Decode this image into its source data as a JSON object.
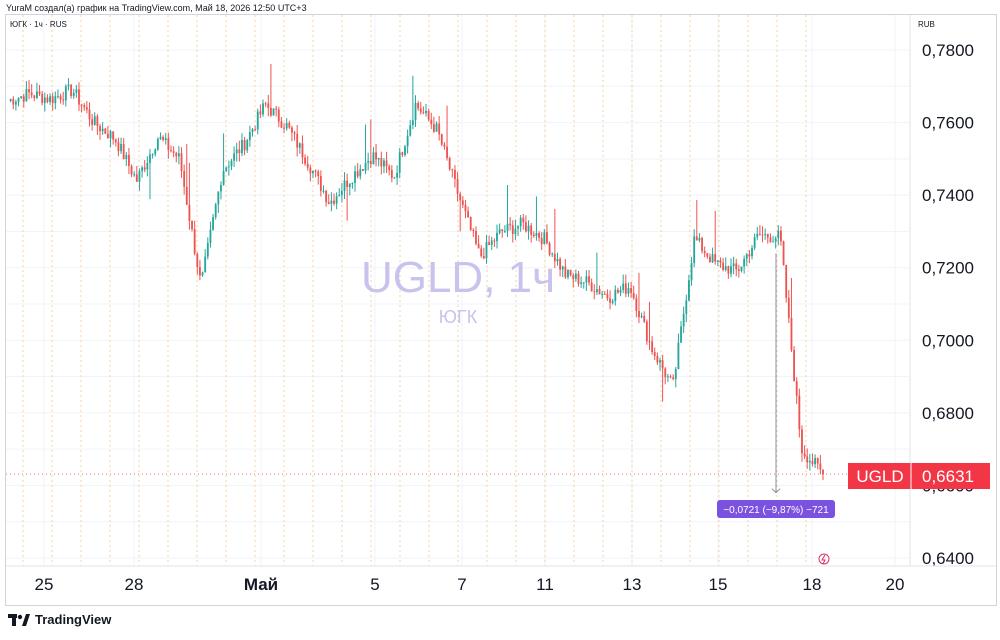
{
  "header": {
    "attribution": "YuraM создал(а) график на TradingView.com, Май 18, 2026 12:50 UTC+3"
  },
  "legend": {
    "symbol_line": "ЮГК · 1ч · RUS"
  },
  "axis": {
    "currency": "RUB"
  },
  "watermark": {
    "title": "UGLD, 1ч",
    "subtitle": "ЮГК"
  },
  "price_tag": {
    "ticker": "UGLD",
    "value": "0,6631",
    "color": "#f23645"
  },
  "measure": {
    "label": "−0,0721 (−9,87%) −721",
    "color": "#7b52e0"
  },
  "footer": {
    "brand": "TradingView"
  },
  "colors": {
    "up": "#26a69a",
    "down": "#ef5350",
    "grid": "#f0f3fa",
    "session_line": "#f5c98a"
  },
  "chart_data": {
    "type": "candlestick",
    "title": "UGLD, 1ч",
    "symbol": "UGLD",
    "exchange": "RUS",
    "interval": "1ч",
    "currency": "RUB",
    "ylim": [
      0.64,
      0.782
    ],
    "y_ticks": [
      "0,7800",
      "0,7600",
      "0,7400",
      "0,7200",
      "0,7000",
      "0,6800",
      "0,6600",
      "0,6400"
    ],
    "x_ticks": [
      "25",
      "28",
      "Май",
      "5",
      "7",
      "11",
      "13",
      "15",
      "18",
      "20"
    ],
    "last_price": 0.6631,
    "price_path": [
      {
        "t": "25",
        "close": 0.766
      },
      {
        "t": "",
        "close": 0.768
      },
      {
        "t": "",
        "close": 0.7665
      },
      {
        "t": "",
        "close": 0.769
      },
      {
        "t": "",
        "close": 0.76
      },
      {
        "t": "28",
        "close": 0.7555
      },
      {
        "t": "",
        "close": 0.744
      },
      {
        "t": "",
        "close": 0.756
      },
      {
        "t": "",
        "close": 0.75
      },
      {
        "t": "",
        "close": 0.715
      },
      {
        "t": "Май",
        "close": 0.747
      },
      {
        "t": "",
        "close": 0.754
      },
      {
        "t": "",
        "close": 0.765
      },
      {
        "t": "",
        "close": 0.759
      },
      {
        "t": "",
        "close": 0.749
      },
      {
        "t": "5",
        "close": 0.738
      },
      {
        "t": "",
        "close": 0.745
      },
      {
        "t": "",
        "close": 0.751
      },
      {
        "t": "7",
        "close": 0.745
      },
      {
        "t": "",
        "close": 0.765
      },
      {
        "t": "",
        "close": 0.758
      },
      {
        "t": "",
        "close": 0.74
      },
      {
        "t": "11",
        "close": 0.723
      },
      {
        "t": "",
        "close": 0.73
      },
      {
        "t": "",
        "close": 0.732
      },
      {
        "t": "",
        "close": 0.728
      },
      {
        "t": "13",
        "close": 0.718
      },
      {
        "t": "",
        "close": 0.716
      },
      {
        "t": "",
        "close": 0.712
      },
      {
        "t": "",
        "close": 0.715
      },
      {
        "t": "15",
        "close": 0.698
      },
      {
        "t": "",
        "close": 0.687
      },
      {
        "t": "",
        "close": 0.728
      },
      {
        "t": "",
        "close": 0.721
      },
      {
        "t": "",
        "close": 0.719
      },
      {
        "t": "",
        "close": 0.729
      },
      {
        "t": "18",
        "close": 0.7285
      },
      {
        "t": "",
        "close": 0.67
      },
      {
        "t": "",
        "close": 0.6631
      }
    ],
    "measured_change": {
      "abs": -0.0721,
      "pct": -9.87,
      "ticks": -721
    }
  }
}
